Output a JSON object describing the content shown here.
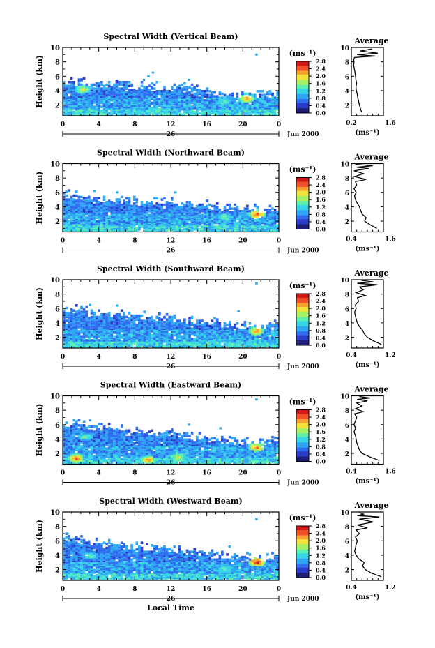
{
  "figure": {
    "panels_note": "",
    "x_label": "Local Time",
    "y_label": "Height (km)",
    "date_day": "26",
    "date_tail": "Jun 2000",
    "x_ticks": [
      "0",
      "4",
      "8",
      "12",
      "16",
      "20",
      "0"
    ],
    "y_ticks": [
      "2",
      "4",
      "6",
      "8",
      "10"
    ],
    "colorbar_unit": "(ms⁻¹)",
    "avg_title": "Average",
    "avg_unit": "(ms⁻¹)"
  },
  "colors": {
    "colormap": [
      "#1e1e78",
      "#2a3cc8",
      "#2f6cf0",
      "#2fa6f4",
      "#36d6e6",
      "#5cf0b0",
      "#a6f064",
      "#f0e23a",
      "#f8a030",
      "#f05028",
      "#d01818"
    ]
  },
  "chart_data": [
    {
      "type": "heatmap",
      "title": "Spectral Width (Vertical Beam)",
      "xlabel": "",
      "ylabel": "Height (km)",
      "xlim": [
        0,
        24
      ],
      "ylim": [
        0.5,
        10
      ],
      "colorbar": {
        "unit": "(ms⁻¹)",
        "ticks": [
          "0.0",
          "0.4",
          "0.8",
          "1.2",
          "1.6",
          "2.0",
          "2.4",
          "2.8"
        ],
        "range": [
          0,
          2.8
        ]
      },
      "echo_top_km": [
        5.2,
        5.0,
        4.8,
        4.7,
        4.6,
        4.4,
        4.3,
        4.0,
        3.6,
        3.4,
        3.3,
        3.5
      ],
      "isolated_echoes": [
        [
          9.5,
          6.0
        ],
        [
          10.0,
          6.5
        ],
        [
          21.5,
          9.0
        ],
        [
          9.0,
          5.5
        ],
        [
          14.0,
          5.5
        ]
      ],
      "hot_spots": [
        [
          2.3,
          4.0,
          1.8
        ],
        [
          20.4,
          2.8,
          2.2
        ],
        [
          17.9,
          2.3,
          1.4
        ],
        [
          10.5,
          1.2,
          1.3
        ]
      ],
      "avg_profile": {
        "title": "Average",
        "xlabel": "(ms⁻¹)",
        "xlim": [
          0.2,
          1.6
        ],
        "x_ticks": [
          "0.2",
          "1.6"
        ],
        "x": [
          0.65,
          0.6,
          0.55,
          0.52,
          0.48,
          0.46,
          0.42,
          0.4,
          0.43,
          0.4,
          0.38,
          0.36,
          0.33,
          0.3,
          0.32,
          0.3,
          0.34,
          1.25,
          0.45,
          1.35,
          0.6,
          1.1
        ],
        "y": [
          1.0,
          1.5,
          2.0,
          2.5,
          3.0,
          3.5,
          4.0,
          4.5,
          5.0,
          5.5,
          6.0,
          6.5,
          7.0,
          7.5,
          8.0,
          8.3,
          8.6,
          8.8,
          9.0,
          9.2,
          9.5,
          9.8
        ]
      }
    },
    {
      "type": "heatmap",
      "title": "Spectral Width (Northward Beam)",
      "xlabel": "",
      "ylabel": "Height (km)",
      "xlim": [
        0,
        24
      ],
      "ylim": [
        0.5,
        10
      ],
      "colorbar": {
        "unit": "(ms⁻¹)",
        "ticks": [
          "0.0",
          "0.4",
          "0.8",
          "1.2",
          "1.6",
          "2.0",
          "2.4",
          "2.8"
        ],
        "range": [
          0,
          2.8
        ]
      },
      "echo_top_km": [
        5.6,
        5.4,
        5.0,
        4.8,
        4.6,
        4.5,
        4.4,
        4.2,
        3.8,
        3.6,
        3.5,
        3.5
      ],
      "isolated_echoes": [
        [
          12.5,
          6.0
        ],
        [
          3.5,
          6.2
        ],
        [
          6.0,
          6.0
        ]
      ],
      "hot_spots": [
        [
          21.6,
          2.8,
          2.4
        ],
        [
          18.0,
          2.4,
          1.4
        ],
        [
          1.0,
          1.0,
          1.0
        ]
      ],
      "avg_profile": {
        "title": "Average",
        "xlabel": "(ms⁻¹)",
        "xlim": [
          0.4,
          1.6
        ],
        "x_ticks": [
          "0.4",
          "1.6"
        ],
        "x": [
          1.35,
          1.1,
          0.9,
          0.95,
          0.8,
          0.75,
          0.7,
          0.62,
          0.55,
          0.52,
          0.58,
          0.5,
          0.6,
          0.55,
          0.95,
          0.52,
          0.85,
          0.5,
          1.05,
          0.6,
          1.2,
          0.55
        ],
        "y": [
          1.0,
          1.5,
          2.0,
          2.5,
          3.0,
          3.5,
          4.0,
          4.5,
          5.0,
          5.5,
          6.0,
          6.5,
          7.0,
          7.5,
          7.8,
          8.2,
          8.6,
          9.0,
          9.3,
          9.5,
          9.7,
          9.9
        ]
      }
    },
    {
      "type": "heatmap",
      "title": "Spectral Width (Southward Beam)",
      "xlabel": "",
      "ylabel": "Height (km)",
      "xlim": [
        0,
        24
      ],
      "ylim": [
        0.5,
        10
      ],
      "colorbar": {
        "unit": "(ms⁻¹)",
        "ticks": [
          "0.0",
          "0.4",
          "0.8",
          "1.2",
          "1.6",
          "2.0",
          "2.4",
          "2.8"
        ],
        "range": [
          0,
          2.8
        ]
      },
      "echo_top_km": [
        6.0,
        5.6,
        5.2,
        5.0,
        4.8,
        4.6,
        4.4,
        4.2,
        3.8,
        3.6,
        3.5,
        3.6
      ],
      "isolated_echoes": [
        [
          3.0,
          6.5
        ],
        [
          6.0,
          6.4
        ],
        [
          21.5,
          9.5
        ],
        [
          19.5,
          5.6
        ]
      ],
      "hot_spots": [
        [
          21.5,
          2.7,
          2.2
        ],
        [
          1.0,
          0.9,
          1.3
        ]
      ],
      "avg_profile": {
        "title": "Average",
        "xlabel": "(ms⁻¹)",
        "xlim": [
          0.4,
          1.2
        ],
        "x_ticks": [
          "0.4",
          "1.2"
        ],
        "x": [
          1.15,
          0.95,
          0.8,
          0.72,
          0.68,
          0.6,
          0.55,
          0.52,
          0.5,
          0.48,
          0.52,
          0.5,
          0.58,
          0.55,
          0.75,
          0.52,
          0.7,
          0.6,
          1.05,
          0.55,
          0.95,
          0.65
        ],
        "y": [
          1.0,
          1.5,
          2.0,
          2.5,
          3.0,
          3.5,
          4.0,
          4.5,
          5.0,
          5.5,
          6.0,
          6.5,
          7.0,
          7.5,
          7.8,
          8.2,
          8.6,
          9.0,
          9.3,
          9.5,
          9.7,
          9.9
        ]
      }
    },
    {
      "type": "heatmap",
      "title": "Spectral Width (Eastward Beam)",
      "xlabel": "",
      "ylabel": "Height (km)",
      "xlim": [
        0,
        24
      ],
      "ylim": [
        0.5,
        10
      ],
      "colorbar": {
        "unit": "(ms⁻¹)",
        "ticks": [
          "0.0",
          "0.4",
          "0.8",
          "1.2",
          "1.6",
          "2.0",
          "2.4",
          "2.8"
        ],
        "range": [
          0,
          2.8
        ]
      },
      "echo_top_km": [
        6.2,
        5.8,
        5.4,
        5.2,
        5.0,
        4.8,
        4.6,
        4.2,
        3.8,
        3.6,
        3.5,
        3.6
      ],
      "isolated_echoes": [
        [
          3.0,
          6.6
        ],
        [
          21.5,
          9.5
        ],
        [
          17.5,
          5.5
        ],
        [
          14.0,
          6.0
        ]
      ],
      "hot_spots": [
        [
          1.5,
          1.2,
          2.4
        ],
        [
          9.5,
          1.0,
          2.2
        ],
        [
          12.8,
          1.3,
          1.8
        ],
        [
          21.5,
          2.7,
          2.2
        ],
        [
          2.5,
          4.2,
          1.4
        ]
      ],
      "avg_profile": {
        "title": "Average",
        "xlabel": "(ms⁻¹)",
        "xlim": [
          0.4,
          1.6
        ],
        "x_ticks": [
          "0.4",
          "1.6"
        ],
        "x": [
          1.45,
          1.1,
          0.8,
          0.7,
          0.65,
          0.6,
          0.58,
          0.55,
          0.5,
          0.56,
          0.5,
          0.55,
          0.6,
          0.52,
          0.85,
          0.55,
          0.8,
          0.6,
          1.0,
          0.62,
          1.1,
          0.7
        ],
        "y": [
          1.0,
          1.5,
          2.0,
          2.5,
          3.0,
          3.5,
          4.0,
          4.5,
          5.0,
          5.5,
          6.0,
          6.5,
          7.0,
          7.5,
          7.8,
          8.2,
          8.6,
          9.0,
          9.3,
          9.5,
          9.7,
          9.9
        ]
      }
    },
    {
      "type": "heatmap",
      "title": "Spectral Width (Westward Beam)",
      "xlabel": "Local Time",
      "ylabel": "Height (km)",
      "xlim": [
        0,
        24
      ],
      "ylim": [
        0.5,
        10
      ],
      "colorbar": {
        "unit": "(ms⁻¹)",
        "ticks": [
          "0.0",
          "0.4",
          "0.8",
          "1.2",
          "1.6",
          "2.0",
          "2.4",
          "2.8"
        ],
        "range": [
          0,
          2.8
        ]
      },
      "echo_top_km": [
        6.6,
        6.0,
        5.5,
        5.2,
        5.0,
        4.8,
        4.6,
        4.3,
        4.0,
        3.6,
        3.4,
        3.6
      ],
      "isolated_echoes": [
        [
          0.5,
          7.0
        ],
        [
          21.5,
          9.0
        ],
        [
          18.5,
          5.2
        ]
      ],
      "hot_spots": [
        [
          21.6,
          2.9,
          2.6
        ],
        [
          18.0,
          2.0,
          1.4
        ],
        [
          3.0,
          3.8,
          1.3
        ]
      ],
      "avg_profile": {
        "title": "Average",
        "xlabel": "(ms⁻¹)",
        "xlim": [
          0.4,
          1.2
        ],
        "x_ticks": [
          "0.4",
          "1.2"
        ],
        "x": [
          1.15,
          0.9,
          0.75,
          0.68,
          0.72,
          0.58,
          0.52,
          0.48,
          0.5,
          0.52,
          0.55,
          0.5,
          0.6,
          0.52,
          0.8,
          0.55,
          0.95,
          0.6,
          1.1,
          0.55,
          0.7,
          0.6
        ],
        "y": [
          1.0,
          1.5,
          2.0,
          2.5,
          3.0,
          3.5,
          4.0,
          4.5,
          5.0,
          5.5,
          6.0,
          6.5,
          7.0,
          7.5,
          7.8,
          8.2,
          8.6,
          9.0,
          9.3,
          9.5,
          9.7,
          9.9
        ]
      }
    }
  ]
}
